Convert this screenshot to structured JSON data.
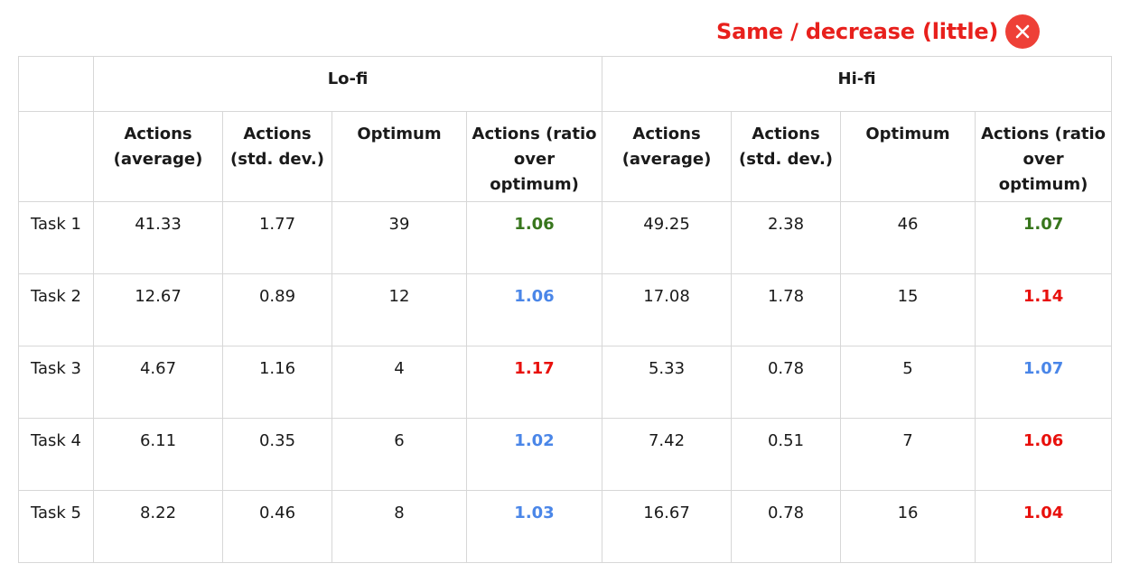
{
  "legend": {
    "label": "Same / decrease (little)",
    "icon": "close-icon",
    "color": "#e8201c"
  },
  "groups": {
    "lofi": "Lo-fi",
    "hifi": "Hi-fi"
  },
  "columns": {
    "actions_avg": "Actions (average)",
    "actions_std": "Actions (std. dev.)",
    "optimum": "Optimum",
    "ratio": "Actions (ratio over optimum)"
  },
  "colors": {
    "green": "#38761d",
    "blue": "#4a86e8",
    "red": "#e8100c"
  },
  "rows": [
    {
      "task": "Task 1",
      "lofi": {
        "avg": "41.33",
        "std": "1.77",
        "opt": "39",
        "ratio": "1.06",
        "ratio_color": "green"
      },
      "hifi": {
        "avg": "49.25",
        "std": "2.38",
        "opt": "46",
        "ratio": "1.07",
        "ratio_color": "green"
      }
    },
    {
      "task": "Task 2",
      "lofi": {
        "avg": "12.67",
        "std": "0.89",
        "opt": "12",
        "ratio": "1.06",
        "ratio_color": "blue"
      },
      "hifi": {
        "avg": "17.08",
        "std": "1.78",
        "opt": "15",
        "ratio": "1.14",
        "ratio_color": "red"
      }
    },
    {
      "task": "Task 3",
      "lofi": {
        "avg": "4.67",
        "std": "1.16",
        "opt": "4",
        "ratio": "1.17",
        "ratio_color": "red"
      },
      "hifi": {
        "avg": "5.33",
        "std": "0.78",
        "opt": "5",
        "ratio": "1.07",
        "ratio_color": "blue"
      }
    },
    {
      "task": "Task 4",
      "lofi": {
        "avg": "6.11",
        "std": "0.35",
        "opt": "6",
        "ratio": "1.02",
        "ratio_color": "blue"
      },
      "hifi": {
        "avg": "7.42",
        "std": "0.51",
        "opt": "7",
        "ratio": "1.06",
        "ratio_color": "red"
      }
    },
    {
      "task": "Task 5",
      "lofi": {
        "avg": "8.22",
        "std": "0.46",
        "opt": "8",
        "ratio": "1.03",
        "ratio_color": "blue"
      },
      "hifi": {
        "avg": "16.67",
        "std": "0.78",
        "opt": "16",
        "ratio": "1.04",
        "ratio_color": "red"
      }
    }
  ]
}
